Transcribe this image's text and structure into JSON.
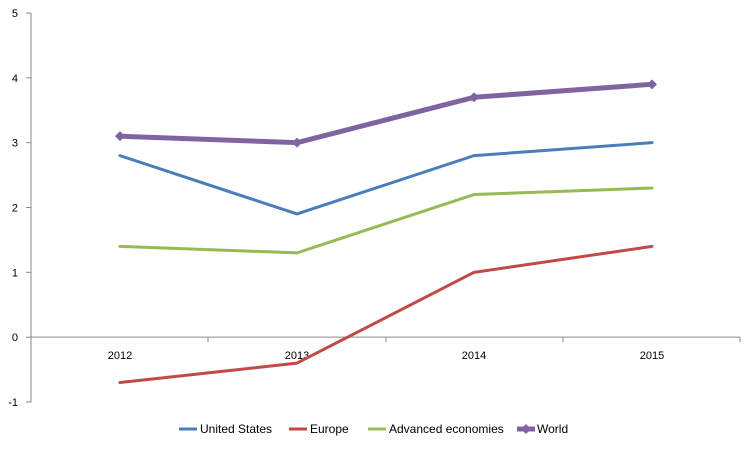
{
  "chart_data": {
    "type": "line",
    "title": "",
    "xlabel": "",
    "ylabel": "",
    "categories": [
      "2012",
      "2013",
      "2014",
      "2015"
    ],
    "ylim": [
      -1,
      5
    ],
    "yticks": [
      -1,
      0,
      1,
      2,
      3,
      4,
      5
    ],
    "grid": false,
    "legend_position": "bottom",
    "series": [
      {
        "name": "United States",
        "values": [
          2.8,
          1.9,
          2.8,
          3.0
        ],
        "color": "#4a7ebb",
        "marker": "none"
      },
      {
        "name": "Europe",
        "values": [
          -0.7,
          -0.4,
          1.0,
          1.4
        ],
        "color": "#be4b48",
        "marker": "none"
      },
      {
        "name": "Advanced economies",
        "values": [
          1.4,
          1.3,
          2.2,
          2.3
        ],
        "color": "#98b954",
        "marker": "none"
      },
      {
        "name": "World",
        "values": [
          3.1,
          3.0,
          3.7,
          3.9
        ],
        "color": "#8064a2",
        "marker": "diamond"
      }
    ]
  }
}
